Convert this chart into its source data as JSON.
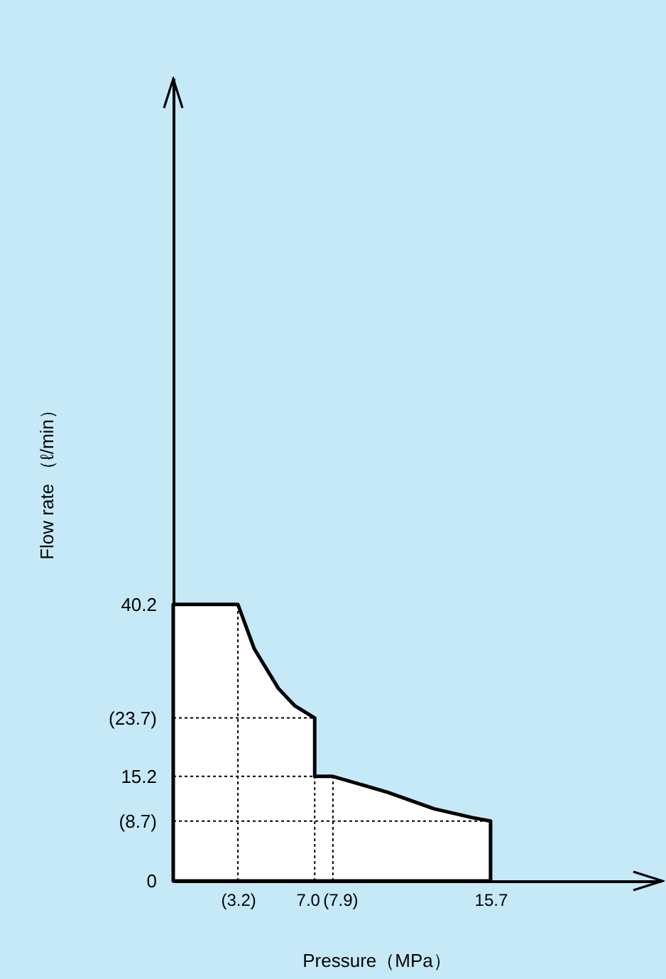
{
  "chart_data": {
    "type": "area",
    "xlabel": "Pressure（MPa）",
    "ylabel": "Flow rate （ℓ/min）",
    "x": [
      0,
      3.2,
      4.0,
      5.2,
      6.0,
      7.0,
      7.0,
      7.9,
      10.6,
      12.9,
      14.8,
      15.7
    ],
    "series": [
      {
        "color": "#ffffff",
        "values": [
          40.2,
          40.2,
          33.8,
          28.0,
          25.5,
          23.7,
          15.2,
          15.2,
          12.9,
          10.5,
          9.2,
          8.7
        ]
      }
    ],
    "xlim": [
      0,
      24.1
    ],
    "ylim": [
      0,
      116.7
    ],
    "xticks": [
      {
        "value": 3.2,
        "label": "(3.2)"
      },
      {
        "value": 7,
        "label": "7.0"
      },
      {
        "value": 7.9,
        "label": "(7.9)"
      },
      15.7
    ],
    "yticks": [
      0,
      {
        "value": 8.7,
        "label": "(8.7)"
      },
      15.2,
      {
        "value": 23.7,
        "label": "(23.7)"
      },
      40.2
    ],
    "ref_lines": [
      {
        "axis": "y",
        "value": 23.7,
        "line_style": "dotted"
      },
      {
        "axis": "y",
        "value": 15.2,
        "line_style": "dotted"
      },
      {
        "axis": "y",
        "value": 8.7,
        "line_style": "dotted"
      },
      {
        "axis": "x",
        "value": 3.2,
        "line_style": "dotted"
      },
      {
        "axis": "x",
        "value": 7.0,
        "line_style": "dotted"
      },
      {
        "axis": "x",
        "value": 7.9,
        "line_style": "dotted"
      }
    ],
    "grid": false
  }
}
